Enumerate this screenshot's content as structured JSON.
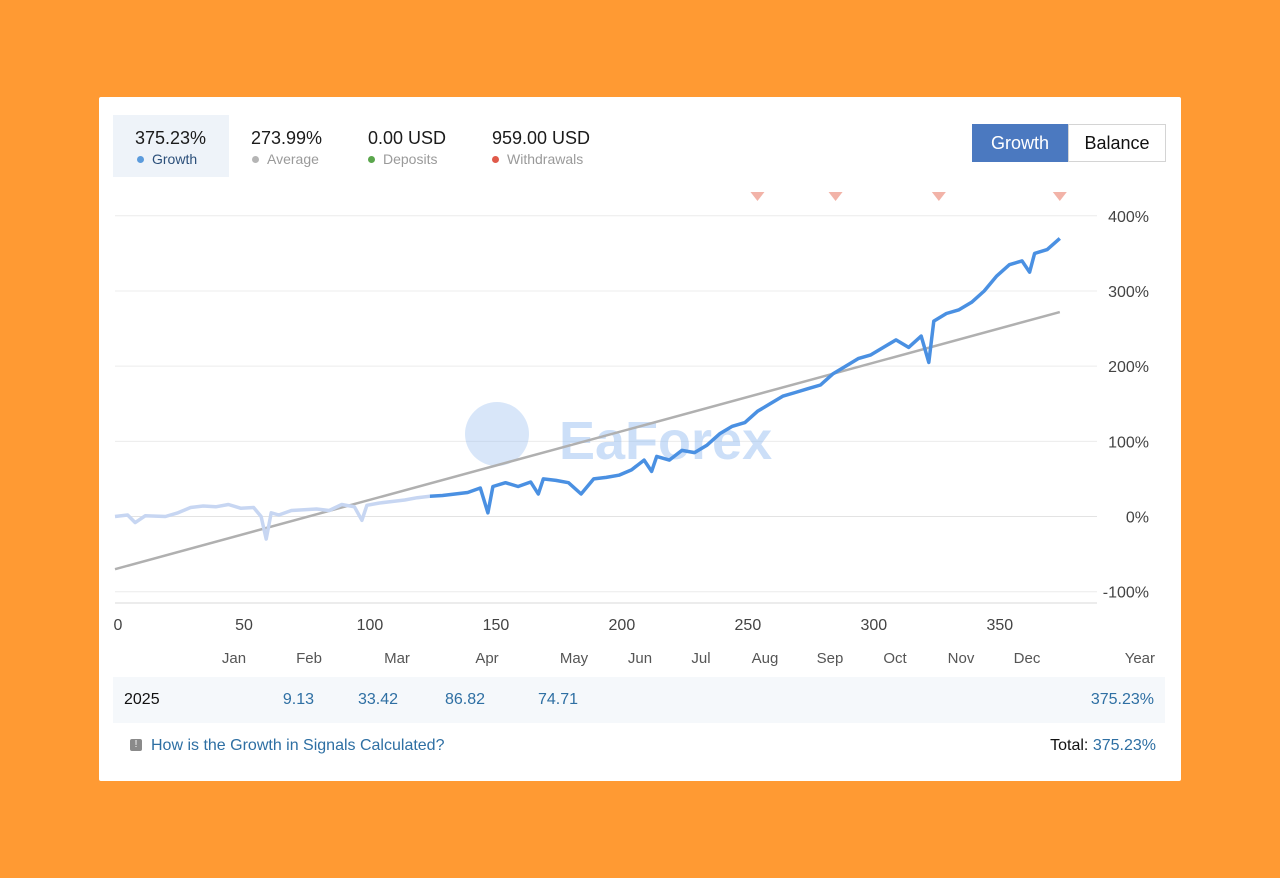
{
  "stats": [
    {
      "value": "375.23%",
      "label": "Growth",
      "color": "#5b9bdc",
      "active": true
    },
    {
      "value": "273.99%",
      "label": "Average",
      "color": "#b5b5b5",
      "active": false
    },
    {
      "value": "0.00 USD",
      "label": "Deposits",
      "color": "#5aa64c",
      "active": false
    },
    {
      "value": "959.00 USD",
      "label": "Withdrawals",
      "color": "#e05a4a",
      "active": false
    }
  ],
  "toggle": {
    "growth": "Growth",
    "balance": "Balance"
  },
  "watermark": "EaForex",
  "chart_data": {
    "type": "line",
    "x_ticks": [
      "0",
      "50",
      "100",
      "150",
      "200",
      "250",
      "300",
      "350"
    ],
    "y_ticks": [
      "400%",
      "300%",
      "200%",
      "100%",
      "0%",
      "-100%"
    ],
    "xlim": [
      0,
      385
    ],
    "ylim": [
      -115,
      425
    ],
    "months": [
      "Jan",
      "Feb",
      "Mar",
      "Apr",
      "May",
      "Jun",
      "Jul",
      "Aug",
      "Sep",
      "Oct",
      "Nov",
      "Dec"
    ],
    "year_header": "Year",
    "withdrawal_markers_x": [
      255,
      286,
      327,
      375
    ],
    "series": [
      {
        "color": "#4a90e2",
        "faded_until_x": 125,
        "x": [
          0,
          5,
          8,
          12,
          20,
          25,
          30,
          35,
          40,
          45,
          50,
          55,
          58,
          60,
          62,
          65,
          70,
          75,
          80,
          85,
          90,
          95,
          98,
          100,
          105,
          110,
          115,
          120,
          125,
          130,
          135,
          140,
          145,
          148,
          150,
          155,
          160,
          165,
          168,
          170,
          175,
          180,
          185,
          190,
          195,
          200,
          205,
          210,
          213,
          215,
          220,
          225,
          230,
          235,
          240,
          245,
          250,
          255,
          260,
          265,
          270,
          275,
          280,
          285,
          290,
          295,
          300,
          305,
          310,
          315,
          320,
          323,
          325,
          330,
          335,
          340,
          345,
          350,
          355,
          360,
          363,
          365,
          370,
          375
        ],
        "y": [
          0,
          2,
          -8,
          1,
          0,
          5,
          12,
          14,
          13,
          16,
          11,
          12,
          0,
          -30,
          5,
          2,
          8,
          9,
          10,
          8,
          16,
          13,
          -5,
          15,
          18,
          20,
          22,
          25,
          27,
          28,
          30,
          32,
          38,
          5,
          40,
          45,
          40,
          46,
          30,
          50,
          48,
          45,
          30,
          50,
          52,
          55,
          62,
          75,
          60,
          80,
          75,
          88,
          85,
          95,
          110,
          120,
          125,
          140,
          150,
          160,
          165,
          170,
          175,
          190,
          200,
          210,
          215,
          225,
          235,
          225,
          240,
          205,
          260,
          270,
          275,
          285,
          300,
          320,
          335,
          340,
          325,
          350,
          355,
          370
        ]
      },
      {
        "color": "#b0b0b0",
        "x": [
          0,
          375
        ],
        "y": [
          -70,
          272
        ]
      }
    ]
  },
  "table": {
    "year": "2025",
    "values": [
      "9.13",
      "33.42",
      "86.82",
      "74.71",
      "",
      "",
      "",
      "",
      "",
      "",
      "",
      ""
    ],
    "total": "375.23%"
  },
  "footer": {
    "link": "How is the Growth in Signals Calculated?",
    "total_label": "Total:",
    "total_value": "375.23%"
  }
}
